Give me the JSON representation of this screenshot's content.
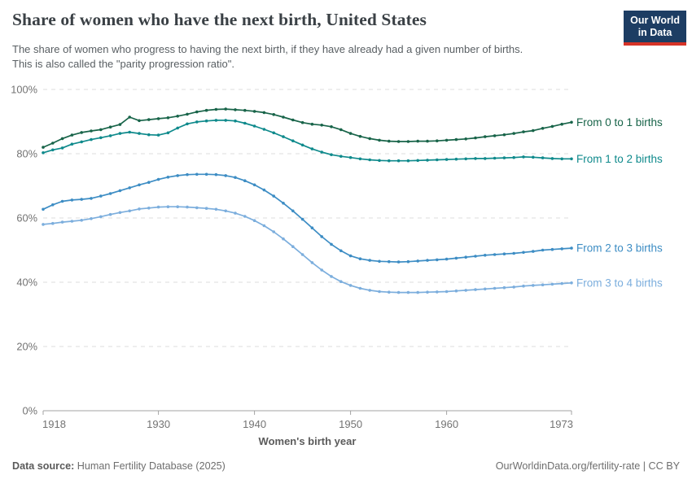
{
  "header": {
    "title": "Share of women who have the next birth, United States",
    "subtitle_line1": "The share of women who progress to having the next birth, if they have already had a given number of births.",
    "subtitle_line2": "This is also called the \"parity progression ratio\".",
    "logo": {
      "line1": "Our World",
      "line2": "in Data",
      "bg": "#1d3d63",
      "accent": "#d63327"
    }
  },
  "chart_data": {
    "type": "line",
    "title": "Share of women who have the next birth, United States",
    "xlabel": "Women's birth year",
    "ylabel": "",
    "x_ticks": [
      1918,
      1930,
      1940,
      1950,
      1960,
      1973
    ],
    "y_ticks": [
      0,
      20,
      40,
      60,
      80,
      100
    ],
    "y_tick_suffix": "%",
    "ylim": [
      0,
      100
    ],
    "xlim": [
      1918,
      1973
    ],
    "grid": "horizontal-dashed",
    "legend_position": "right-end-labels",
    "x": [
      1918,
      1919,
      1920,
      1921,
      1922,
      1923,
      1924,
      1925,
      1926,
      1927,
      1928,
      1929,
      1930,
      1931,
      1932,
      1933,
      1934,
      1935,
      1936,
      1937,
      1938,
      1939,
      1940,
      1941,
      1942,
      1943,
      1944,
      1945,
      1946,
      1947,
      1948,
      1949,
      1950,
      1951,
      1952,
      1953,
      1954,
      1955,
      1956,
      1957,
      1958,
      1959,
      1960,
      1961,
      1962,
      1963,
      1964,
      1965,
      1966,
      1967,
      1968,
      1969,
      1970,
      1971,
      1972,
      1973
    ],
    "series": [
      {
        "name": "From 0 to 1 births",
        "color": "#186449",
        "values": [
          82.0,
          83.3,
          84.7,
          85.8,
          86.6,
          87.1,
          87.5,
          88.3,
          89.1,
          91.4,
          90.3,
          90.6,
          90.9,
          91.2,
          91.7,
          92.3,
          93.0,
          93.5,
          93.8,
          93.9,
          93.7,
          93.5,
          93.2,
          92.8,
          92.2,
          91.4,
          90.5,
          89.7,
          89.2,
          88.9,
          88.4,
          87.5,
          86.3,
          85.4,
          84.7,
          84.2,
          83.9,
          83.8,
          83.8,
          83.9,
          83.9,
          84.0,
          84.2,
          84.4,
          84.6,
          84.9,
          85.3,
          85.6,
          85.9,
          86.3,
          86.8,
          87.2,
          87.9,
          88.5,
          89.2,
          89.8
        ]
      },
      {
        "name": "From 1 to 2 births",
        "color": "#0f8a8c",
        "values": [
          80.3,
          81.2,
          81.8,
          83.0,
          83.7,
          84.4,
          85.0,
          85.6,
          86.3,
          86.7,
          86.3,
          85.9,
          85.8,
          86.5,
          88.0,
          89.3,
          89.9,
          90.2,
          90.4,
          90.4,
          90.2,
          89.5,
          88.6,
          87.6,
          86.5,
          85.3,
          84.0,
          82.7,
          81.5,
          80.5,
          79.7,
          79.2,
          78.8,
          78.4,
          78.1,
          77.9,
          77.8,
          77.8,
          77.8,
          77.9,
          78.0,
          78.1,
          78.2,
          78.3,
          78.4,
          78.5,
          78.5,
          78.6,
          78.7,
          78.8,
          79.0,
          78.9,
          78.7,
          78.5,
          78.4,
          78.4
        ]
      },
      {
        "name": "From 2 to 3 births",
        "color": "#3d8dc4",
        "values": [
          62.7,
          64.1,
          65.2,
          65.6,
          65.8,
          66.1,
          66.8,
          67.6,
          68.5,
          69.4,
          70.3,
          71.1,
          72.0,
          72.7,
          73.2,
          73.5,
          73.6,
          73.6,
          73.5,
          73.2,
          72.6,
          71.6,
          70.3,
          68.7,
          66.8,
          64.6,
          62.2,
          59.6,
          56.9,
          54.2,
          51.8,
          49.8,
          48.2,
          47.3,
          46.8,
          46.5,
          46.4,
          46.3,
          46.4,
          46.6,
          46.8,
          47.0,
          47.2,
          47.5,
          47.8,
          48.1,
          48.4,
          48.6,
          48.8,
          49.0,
          49.3,
          49.6,
          50.0,
          50.2,
          50.4,
          50.6
        ]
      },
      {
        "name": "From 3 to 4 births",
        "color": "#7caedd",
        "values": [
          58.0,
          58.3,
          58.7,
          59.0,
          59.3,
          59.8,
          60.4,
          61.1,
          61.7,
          62.2,
          62.8,
          63.1,
          63.4,
          63.5,
          63.5,
          63.4,
          63.2,
          63.0,
          62.7,
          62.2,
          61.5,
          60.5,
          59.2,
          57.6,
          55.7,
          53.5,
          51.1,
          48.6,
          46.1,
          43.8,
          41.8,
          40.2,
          39.0,
          38.1,
          37.5,
          37.1,
          36.9,
          36.8,
          36.8,
          36.8,
          36.9,
          37.0,
          37.1,
          37.3,
          37.5,
          37.7,
          37.9,
          38.1,
          38.3,
          38.5,
          38.8,
          39.0,
          39.2,
          39.4,
          39.6,
          39.8
        ]
      }
    ]
  },
  "footer": {
    "source_label": "Data source:",
    "source_value": " Human Fertility Database (2025)",
    "credit": "OurWorldinData.org/fertility-rate | CC BY"
  }
}
